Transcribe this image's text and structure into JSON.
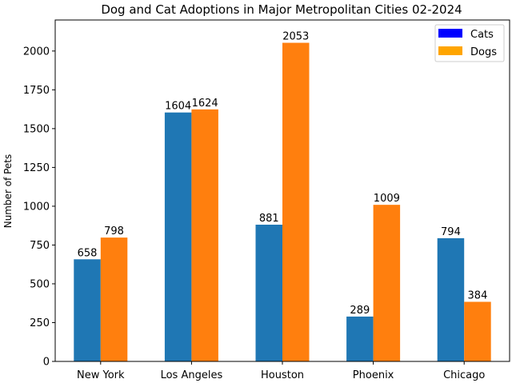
{
  "chart_data": {
    "type": "bar",
    "title": "Dog and Cat Adoptions in Major Metropolitan Cities 02-2024",
    "xlabel": "",
    "ylabel": "Number of Pets",
    "categories": [
      "New York",
      "Los Angeles",
      "Houston",
      "Phoenix",
      "Chicago"
    ],
    "series": [
      {
        "name": "Cats",
        "values": [
          658,
          1604,
          881,
          289,
          794
        ],
        "color": "#1f77b4",
        "legend_color": "#0000ff"
      },
      {
        "name": "Dogs",
        "values": [
          798,
          1624,
          2053,
          1009,
          384
        ],
        "color": "#ff7f0e",
        "legend_color": "#ffa500"
      }
    ],
    "ylim": [
      0,
      2200
    ],
    "yticks": [
      0,
      250,
      500,
      750,
      1000,
      1250,
      1500,
      1750,
      2000
    ],
    "grid": false,
    "legend_position": "top-right"
  }
}
